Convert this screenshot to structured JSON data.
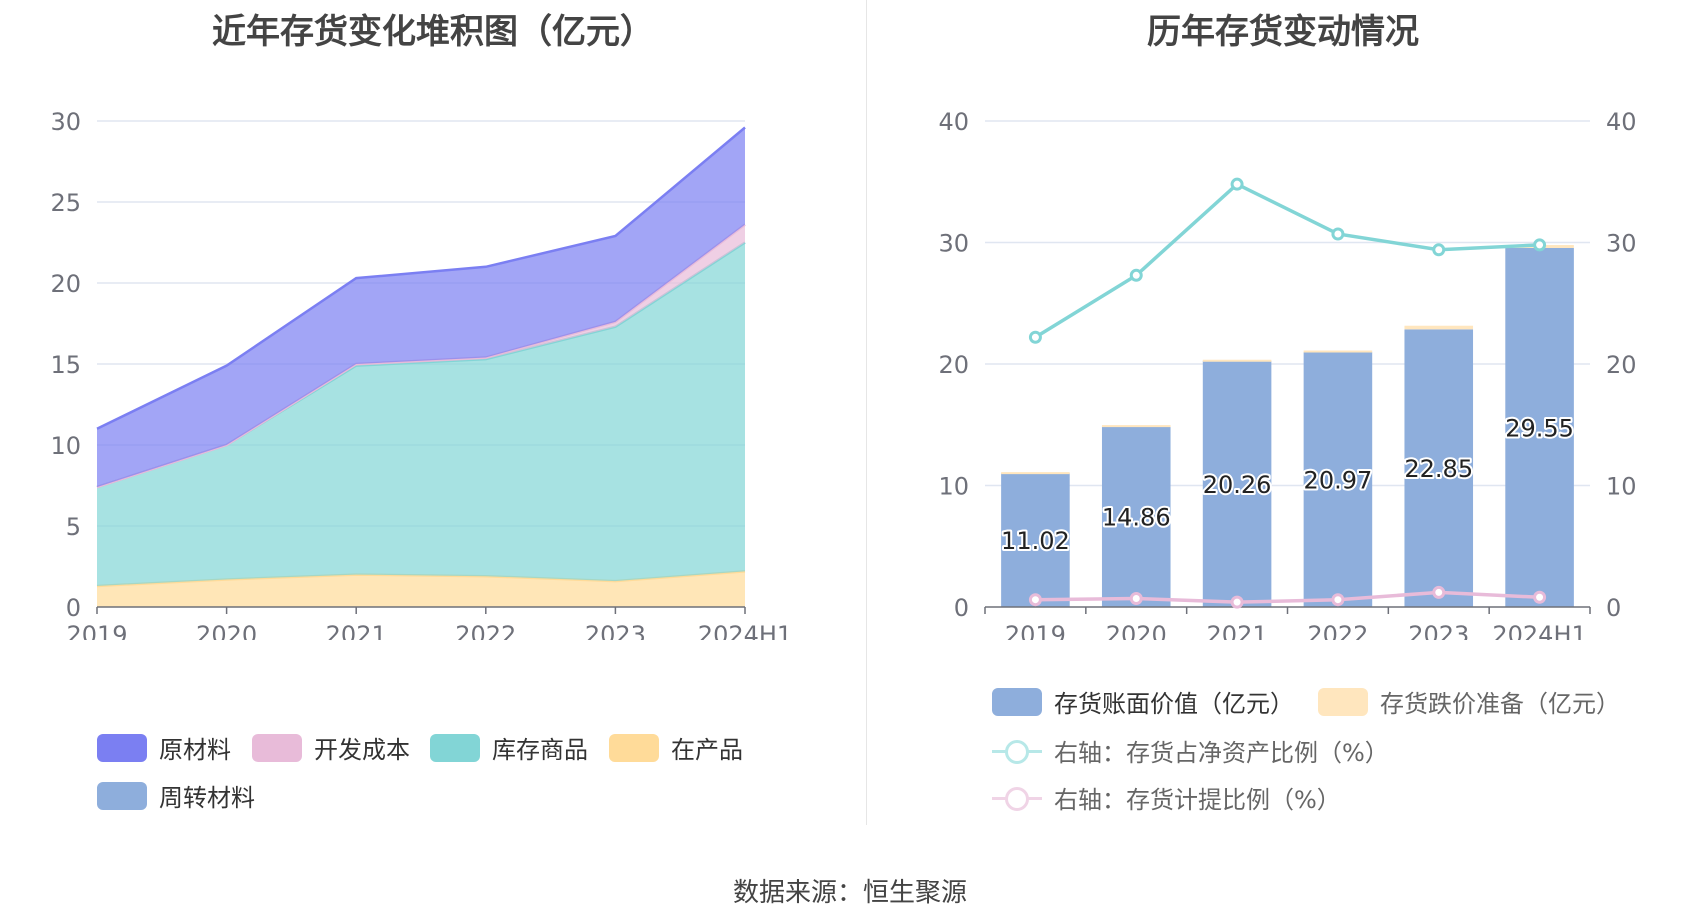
{
  "footer": {
    "source": "数据来源：恒生聚源"
  },
  "chart_data": [
    {
      "type": "area",
      "title": "近年存货变化堆积图（亿元）",
      "categories": [
        "2019",
        "2020",
        "2021",
        "2022",
        "2023",
        "2024H1"
      ],
      "ylim": [
        0,
        30
      ],
      "yticks": [
        0,
        5,
        10,
        15,
        20,
        25,
        30
      ],
      "stacked": true,
      "grid": true,
      "legend_position": "bottom-left",
      "series": [
        {
          "name": "在产品",
          "color": "#ffdb99",
          "values": [
            1.3,
            1.7,
            2.0,
            1.9,
            1.6,
            2.2
          ]
        },
        {
          "name": "库存商品",
          "color": "#82d5d6",
          "values": [
            6.1,
            8.3,
            12.9,
            13.4,
            15.7,
            20.3
          ]
        },
        {
          "name": "开发成本",
          "color": "#e8bbd9",
          "values": [
            0.0,
            0.0,
            0.1,
            0.1,
            0.3,
            1.1
          ]
        },
        {
          "name": "原材料",
          "color": "#7b7ff2",
          "values": [
            3.6,
            4.9,
            5.3,
            5.6,
            5.3,
            6.0
          ]
        },
        {
          "name": "周转材料",
          "color": "#8eaedc",
          "values": [
            0.0,
            0.0,
            0.0,
            0.0,
            0.0,
            0.0
          ]
        }
      ],
      "legend": [
        "原材料",
        "开发成本",
        "库存商品",
        "在产品",
        "周转材料"
      ]
    },
    {
      "type": "bar",
      "title": "历年存货变动情况",
      "categories": [
        "2019",
        "2020",
        "2021",
        "2022",
        "2023",
        "2024H1"
      ],
      "ylim": [
        0,
        40
      ],
      "yticks": [
        0,
        10,
        20,
        30,
        40
      ],
      "y2lim": [
        0,
        40
      ],
      "y2ticks": [
        0,
        10,
        20,
        30,
        40
      ],
      "grid": true,
      "legend_position": "bottom",
      "bars": [
        {
          "name": "存货账面价值（亿元）",
          "color": "#8eaedc",
          "values": [
            11.02,
            14.86,
            20.26,
            20.97,
            22.85,
            29.55
          ],
          "labels": [
            "11.02",
            "14.86",
            "20.26",
            "20.97",
            "22.85",
            "29.55"
          ]
        },
        {
          "name": "存货跌价准备（亿元）",
          "color": "#ffe6be",
          "values": [
            0.08,
            0.11,
            0.09,
            0.14,
            0.3,
            0.24
          ]
        }
      ],
      "lines": [
        {
          "name": "右轴：存货占净资产比例（%）",
          "color": "#82d5d6",
          "axis": "right",
          "values": [
            22.2,
            27.3,
            34.8,
            30.7,
            29.4,
            29.8
          ]
        },
        {
          "name": "右轴：存货计提比例（%）",
          "color": "#e8bbd9",
          "axis": "right",
          "values": [
            0.6,
            0.7,
            0.4,
            0.6,
            1.2,
            0.8
          ]
        }
      ]
    }
  ]
}
